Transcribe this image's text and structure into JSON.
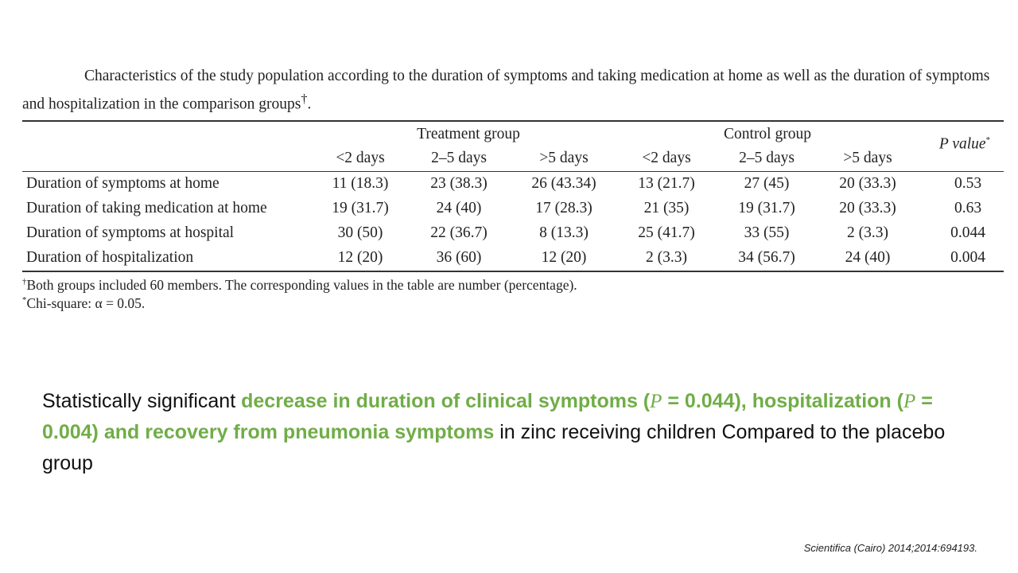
{
  "caption": {
    "text": "Characteristics of the study population according to the duration of symptoms and taking medication at home as well as the duration of symptoms and hospitalization in the comparison groups",
    "mark": "†",
    "end": "."
  },
  "table": {
    "group_headers": [
      "Treatment group",
      "Control group"
    ],
    "pvalue_header": "P value",
    "pvalue_mark": "*",
    "sub_headers": [
      "<2 days",
      "2–5 days",
      ">5 days",
      "<2 days",
      "2–5 days",
      ">5 days"
    ],
    "rows": [
      {
        "label": "Duration of symptoms at home",
        "cells": [
          "11 (18.3)",
          "23 (38.3)",
          "26 (43.34)",
          "13 (21.7)",
          "27 (45)",
          "20 (33.3)",
          "0.53"
        ]
      },
      {
        "label": "Duration of taking medication at home",
        "cells": [
          "19 (31.7)",
          "24 (40)",
          "17 (28.3)",
          "21 (35)",
          "19 (31.7)",
          "20 (33.3)",
          "0.63"
        ]
      },
      {
        "label": "Duration of symptoms at hospital",
        "cells": [
          "30 (50)",
          "22 (36.7)",
          "8 (13.3)",
          "25 (41.7)",
          "33 (55)",
          "2 (3.3)",
          "0.044"
        ]
      },
      {
        "label": "Duration of hospitalization",
        "cells": [
          "12 (20)",
          "36 (60)",
          "12 (20)",
          "2 (3.3)",
          "34 (56.7)",
          "24 (40)",
          "0.004"
        ]
      }
    ]
  },
  "notes": [
    {
      "mark": "†",
      "text": "Both groups included 60 members. The corresponding values in the table are number (percentage)."
    },
    {
      "mark": "*",
      "text": "Chi-square: α = 0.05."
    }
  ],
  "summary": {
    "s1": "Statistically significant ",
    "s2": "decrease in duration of clinical symptoms (",
    "p": "P",
    "s3": " = 0.044), hospitalization (",
    "s4": " = 0.004) and recovery from pneumonia symptoms",
    "s5": " in zinc receiving children Compared to the placebo group",
    "accent": "#70ad47"
  },
  "citation": "Scientifica (Cairo) 2014;2014:694193."
}
